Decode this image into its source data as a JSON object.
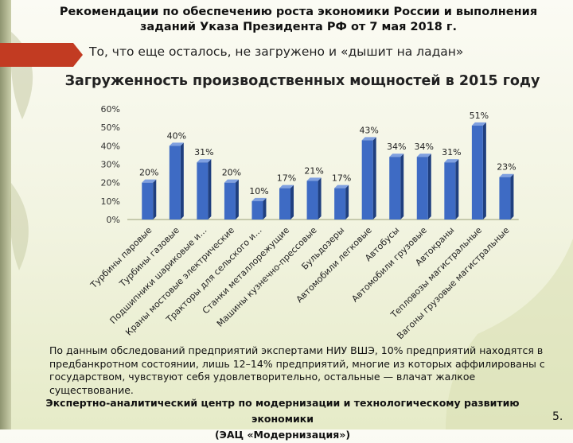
{
  "header": {
    "title_line1": "Рекомендации по обеспечению роста экономики России и выполнения",
    "title_line2": "заданий Указа Президента РФ от 7 мая 2018 г."
  },
  "banner": {
    "text": "То, что еще осталось, не загружено и «дышит на ладан»",
    "accent_color": "#c23b22"
  },
  "chart_data": {
    "type": "bar",
    "title": "Загруженность производственных мощностей в 2015 году",
    "categories": [
      "Турбины паровые",
      "Турбины газовые",
      "Подшипники шариковые и…",
      "Краны мостовые электрические",
      "Тракторы для сельского и…",
      "Станки металлорежущие",
      "Машины кузнечно-прессовые",
      "Бульдозеры",
      "Автомобили легковые",
      "Автобусы",
      "Автомобили грузовые",
      "Автокраны",
      "Тепловозы магистральные",
      "Вагоны грузовые магистральные"
    ],
    "values": [
      20,
      40,
      31,
      20,
      10,
      17,
      21,
      17,
      43,
      34,
      34,
      31,
      51,
      23
    ],
    "value_labels": [
      "20%",
      "40%",
      "31%",
      "20%",
      "10%",
      "17%",
      "21%",
      "17%",
      "43%",
      "34%",
      "34%",
      "31%",
      "51%",
      "23%"
    ],
    "y_ticks": [
      "0%",
      "10%",
      "20%",
      "30%",
      "40%",
      "50%",
      "60%"
    ],
    "ylim": [
      0,
      60
    ],
    "grid": false,
    "bar_color": "#3e6bc4",
    "bar_side_color": "#1f3f7f",
    "bar_top_color": "#7fa0e0"
  },
  "note": {
    "text": "По данным обследований предприятий экспертами НИУ ВШЭ, 10% предприятий находятся в предбанкротном состоянии, лишь 12–14% предприятий, многие из которых аффилированы с государством, чувствуют себя удовлетворительно, остальные — влачат жалкое существование."
  },
  "footer": {
    "line1": "Экспертно-аналитический центр по модернизации и технологическому развитию экономики",
    "line2": "(ЭАЦ «Модернизация»)"
  },
  "page_number": "5."
}
